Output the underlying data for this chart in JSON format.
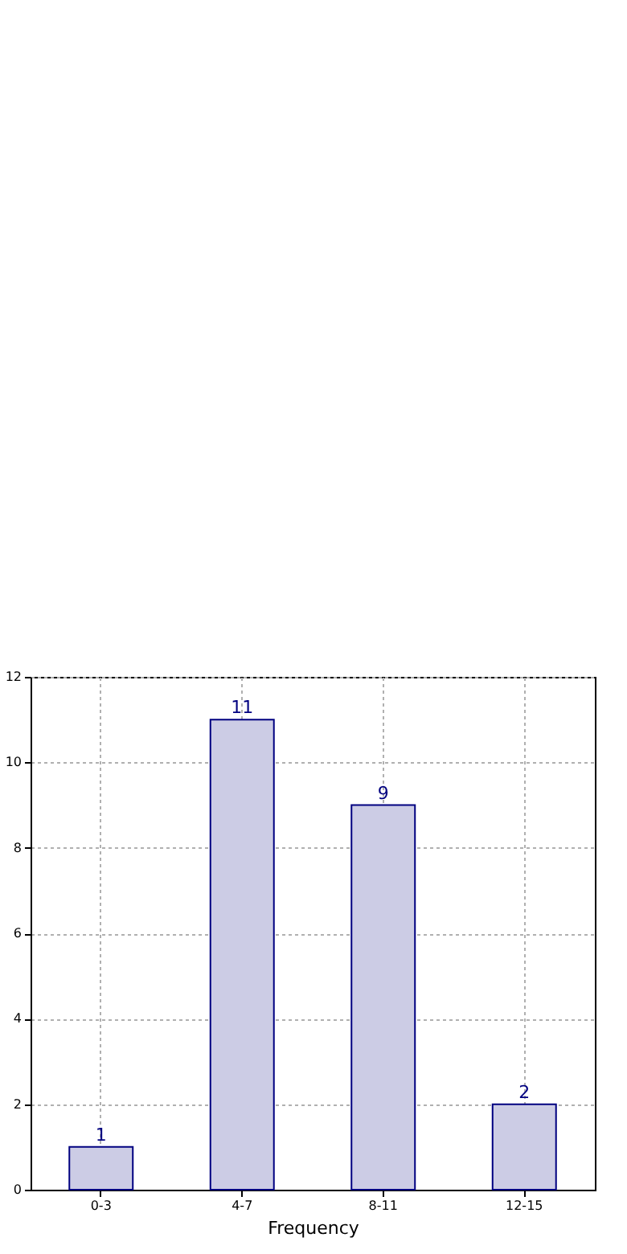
{
  "chart_data": {
    "type": "bar",
    "xlabel": "Frequency",
    "categories": [
      "0-3",
      "4-7",
      "8-11",
      "12-15"
    ],
    "series": [
      {
        "color": "#ccccE5",
        "values": [
          1,
          11,
          9,
          2
        ]
      }
    ],
    "ylim": [
      0,
      12
    ],
    "yticks": [
      0,
      2,
      4,
      6,
      8,
      10,
      12
    ],
    "grid": true,
    "data_labels": true
  }
}
